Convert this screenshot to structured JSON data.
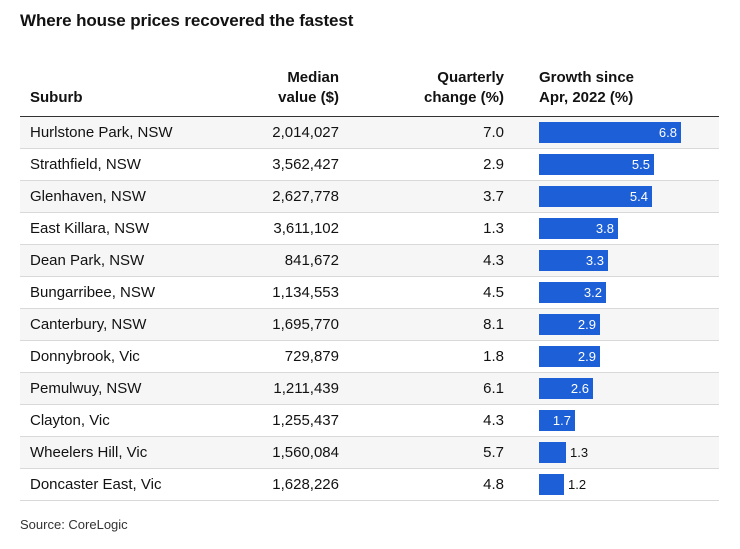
{
  "title": "Where house prices recovered the fastest",
  "source": "Source: CoreLogic",
  "colors": {
    "bar": "#1d5fd6",
    "row_alt": "#f6f6f6"
  },
  "columns": {
    "suburb": "Suburb",
    "median": "Median\nvalue ($)",
    "quarterly": "Quarterly\nchange (%)",
    "growth": "Growth since\nApr, 2022 (%)"
  },
  "chart_data": {
    "type": "table",
    "columns": [
      "Suburb",
      "Median value ($)",
      "Quarterly change (%)",
      "Growth since Apr, 2022 (%)"
    ],
    "rows": [
      {
        "suburb": "Hurlstone Park, NSW",
        "median": "2,014,027",
        "quarterly": "7.0",
        "growth": 6.8
      },
      {
        "suburb": "Strathfield, NSW",
        "median": "3,562,427",
        "quarterly": "2.9",
        "growth": 5.5
      },
      {
        "suburb": "Glenhaven, NSW",
        "median": "2,627,778",
        "quarterly": "3.7",
        "growth": 5.4
      },
      {
        "suburb": "East Killara, NSW",
        "median": "3,611,102",
        "quarterly": "1.3",
        "growth": 3.8
      },
      {
        "suburb": "Dean Park, NSW",
        "median": "841,672",
        "quarterly": "4.3",
        "growth": 3.3
      },
      {
        "suburb": "Bungarribee, NSW",
        "median": "1,134,553",
        "quarterly": "4.5",
        "growth": 3.2
      },
      {
        "suburb": "Canterbury, NSW",
        "median": "1,695,770",
        "quarterly": "8.1",
        "growth": 2.9
      },
      {
        "suburb": "Donnybrook, Vic",
        "median": "729,879",
        "quarterly": "1.8",
        "growth": 2.9
      },
      {
        "suburb": "Pemulwuy, NSW",
        "median": "1,211,439",
        "quarterly": "6.1",
        "growth": 2.6
      },
      {
        "suburb": "Clayton, Vic",
        "median": "1,255,437",
        "quarterly": "4.3",
        "growth": 1.7
      },
      {
        "suburb": "Wheelers Hill, Vic",
        "median": "1,560,084",
        "quarterly": "5.7",
        "growth": 1.3
      },
      {
        "suburb": "Doncaster East, Vic",
        "median": "1,628,226",
        "quarterly": "4.8",
        "growth": 1.2
      }
    ],
    "growth_max": 6.8
  }
}
